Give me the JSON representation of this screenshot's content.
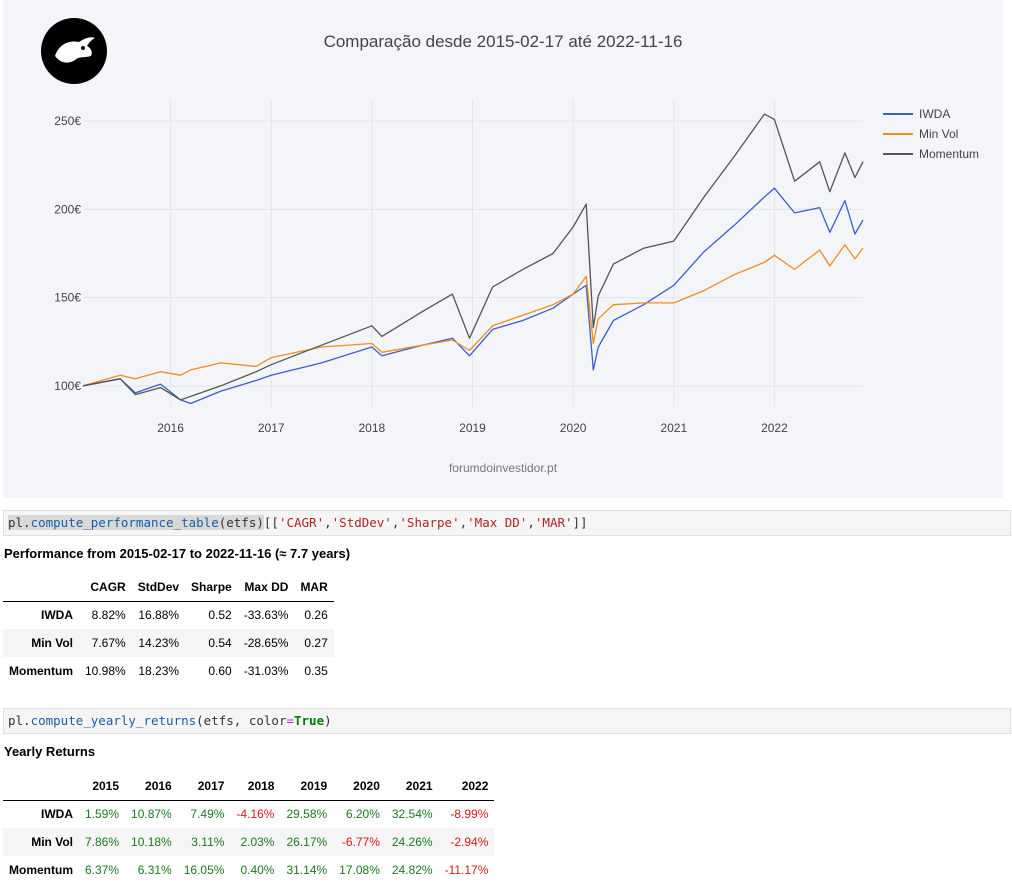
{
  "chart_data": {
    "type": "line",
    "title": "Comparação desde 2015-02-17 até 2022-11-16",
    "watermark": "forumdoinvestidor.pt",
    "xlabel": "",
    "ylabel": "",
    "x_ticks": [
      "2016",
      "2017",
      "2018",
      "2019",
      "2020",
      "2021",
      "2022"
    ],
    "y_ticks": [
      "100€",
      "150€",
      "200€",
      "250€"
    ],
    "ylim": [
      88,
      262
    ],
    "xlim": [
      2015.13,
      2022.88
    ],
    "legend_position": "top-right",
    "grid": true,
    "x": [
      2015.13,
      2015.5,
      2015.65,
      2015.9,
      2016.1,
      2016.2,
      2016.5,
      2016.85,
      2017.0,
      2017.5,
      2018.0,
      2018.1,
      2018.5,
      2018.8,
      2018.97,
      2019.2,
      2019.5,
      2019.8,
      2020.0,
      2020.13,
      2020.2,
      2020.25,
      2020.4,
      2020.7,
      2021.0,
      2021.3,
      2021.6,
      2021.9,
      2022.0,
      2022.2,
      2022.45,
      2022.55,
      2022.7,
      2022.8,
      2022.88
    ],
    "series": [
      {
        "name": "IWDA",
        "color": "#3a5fcd",
        "values": [
          100,
          104,
          96,
          101,
          92,
          90,
          97,
          103,
          106,
          113,
          122,
          117,
          123,
          127,
          117,
          132,
          137,
          144,
          152,
          157,
          109,
          122,
          137,
          146,
          157,
          176,
          191,
          207,
          212,
          198,
          201,
          187,
          205,
          186,
          194
        ]
      },
      {
        "name": "Min Vol",
        "color": "#f28c1c",
        "values": [
          100,
          106,
          104,
          108,
          106,
          109,
          113,
          111,
          116,
          122,
          124,
          119,
          123,
          126,
          120,
          134,
          140,
          146,
          152,
          162,
          124,
          138,
          146,
          147,
          147,
          154,
          163,
          170,
          174,
          166,
          177,
          168,
          180,
          172,
          178
        ]
      },
      {
        "name": "Momentum",
        "color": "#555555",
        "values": [
          100,
          104,
          95,
          99,
          92,
          94,
          100,
          108,
          112,
          123,
          134,
          128,
          142,
          152,
          127,
          156,
          166,
          175,
          190,
          203,
          133,
          151,
          169,
          178,
          182,
          207,
          230,
          254,
          251,
          216,
          227,
          210,
          232,
          218,
          227
        ]
      }
    ]
  },
  "cell1": {
    "code_prefix": "pl.",
    "code_fn": "compute_performance_table",
    "code_args": "(etfs)",
    "code_open": "[[",
    "code_list": [
      "'CAGR'",
      "'StdDev'",
      "'Sharpe'",
      "'Max DD'",
      "'MAR'"
    ],
    "code_close": "]]"
  },
  "perf": {
    "heading": "Performance from 2015-02-17 to 2022-11-16 (≈ 7.7 years)",
    "columns": [
      "CAGR",
      "StdDev",
      "Sharpe",
      "Max DD",
      "MAR"
    ],
    "rows": [
      {
        "label": "IWDA",
        "cells": [
          "8.82%",
          "16.88%",
          "0.52",
          "-33.63%",
          "0.26"
        ]
      },
      {
        "label": "Min Vol",
        "cells": [
          "7.67%",
          "14.23%",
          "0.54",
          "-28.65%",
          "0.27"
        ]
      },
      {
        "label": "Momentum",
        "cells": [
          "10.98%",
          "18.23%",
          "0.60",
          "-31.03%",
          "0.35"
        ]
      }
    ]
  },
  "cell2": {
    "code_prefix": "pl.",
    "code_fn": "compute_yearly_returns",
    "code_args_a": "(etfs, color",
    "code_eq": "=",
    "code_kw": "True",
    "code_close": ")"
  },
  "yearly": {
    "heading": "Yearly Returns",
    "columns": [
      "2015",
      "2016",
      "2017",
      "2018",
      "2019",
      "2020",
      "2021",
      "2022"
    ],
    "rows": [
      {
        "label": "IWDA",
        "cells": [
          "1.59%",
          "10.87%",
          "7.49%",
          "-4.16%",
          "29.58%",
          "6.20%",
          "32.54%",
          "-8.99%"
        ]
      },
      {
        "label": "Min Vol",
        "cells": [
          "7.86%",
          "10.18%",
          "3.11%",
          "2.03%",
          "26.17%",
          "-6.77%",
          "24.26%",
          "-2.94%"
        ]
      },
      {
        "label": "Momentum",
        "cells": [
          "6.37%",
          "6.31%",
          "16.05%",
          "0.40%",
          "31.14%",
          "17.08%",
          "24.82%",
          "-11.17%"
        ]
      }
    ],
    "positive_color": "#1a7a1a",
    "negative_color": "#d61a1a"
  }
}
